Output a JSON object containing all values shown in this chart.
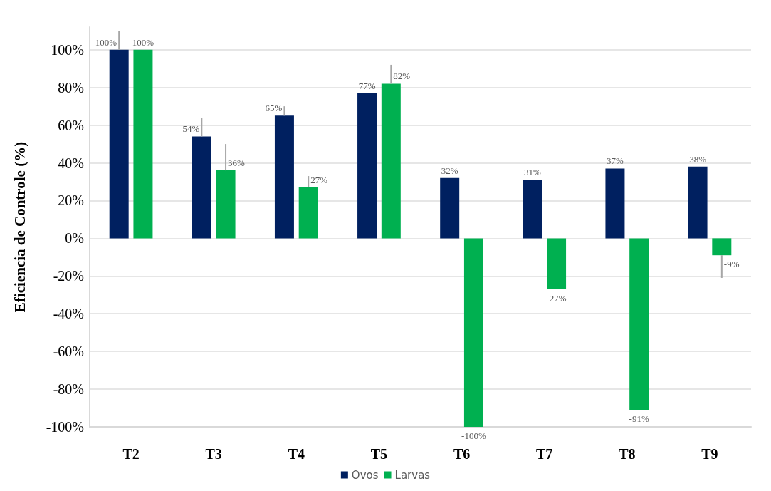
{
  "chart_data": {
    "type": "bar",
    "ylabel": "Eficiencia de Controle (%)",
    "categories": [
      "T2",
      "T3",
      "T4",
      "T5",
      "T6",
      "T7",
      "T8",
      "T9"
    ],
    "series": [
      {
        "name": "Ovos",
        "color": "#002060",
        "values": [
          100,
          54,
          65,
          77,
          32,
          31,
          37,
          38
        ],
        "value_labels": [
          "100%",
          "54%",
          "65%",
          "77%",
          "32%",
          "31%",
          "37%",
          "38%"
        ],
        "errors": [
          [
            100,
            110
          ],
          [
            54,
            64
          ],
          [
            65,
            70
          ],
          null,
          null,
          null,
          null,
          null
        ]
      },
      {
        "name": "Larvas",
        "color": "#00b050",
        "values": [
          100,
          36,
          27,
          82,
          -100,
          -27,
          -91,
          -9
        ],
        "value_labels": [
          "100%",
          "36%",
          "27%",
          "82%",
          "-100%",
          "-27%",
          "-91%",
          "-9%"
        ],
        "errors": [
          null,
          [
            36,
            50
          ],
          [
            27,
            33
          ],
          [
            82,
            92
          ],
          null,
          null,
          null,
          [
            -21,
            -9
          ]
        ]
      }
    ],
    "ylim": [
      -100,
      112
    ],
    "yticks": [
      {
        "value": -100,
        "label": "-100%"
      },
      {
        "value": -80,
        "label": "-80%"
      },
      {
        "value": -60,
        "label": "-60%"
      },
      {
        "value": -40,
        "label": "-40%"
      },
      {
        "value": -20,
        "label": "-20%"
      },
      {
        "value": 0,
        "label": "0%"
      },
      {
        "value": 20,
        "label": "20%"
      },
      {
        "value": 40,
        "label": "40%"
      },
      {
        "value": 60,
        "label": "60%"
      },
      {
        "value": 80,
        "label": "80%"
      },
      {
        "value": 100,
        "label": "100%"
      }
    ],
    "grid": "y",
    "legend": "bottom"
  }
}
